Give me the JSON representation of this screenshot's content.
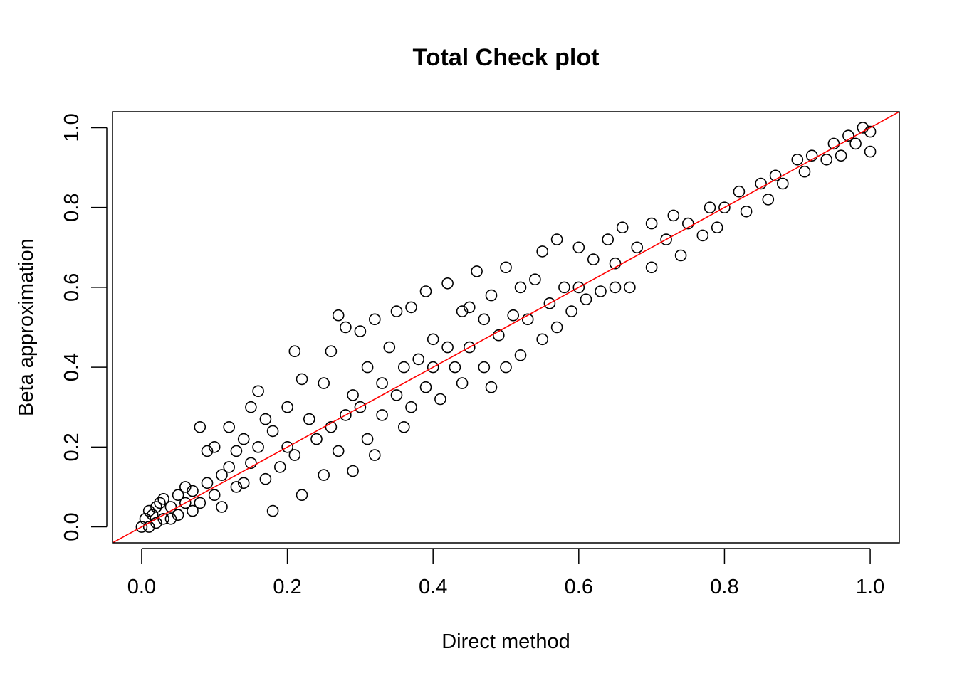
{
  "chart_data": {
    "type": "scatter",
    "title": "Total Check plot",
    "xlabel": "Direct method",
    "ylabel": "Beta approximation",
    "xlim": [
      -0.04,
      1.04
    ],
    "ylim": [
      -0.04,
      1.04
    ],
    "x_ticks": [
      0.0,
      0.2,
      0.4,
      0.6,
      0.8,
      1.0
    ],
    "y_ticks": [
      0.0,
      0.2,
      0.4,
      0.6,
      0.8,
      1.0
    ],
    "x_tick_labels": [
      "0.0",
      "0.2",
      "0.4",
      "0.6",
      "0.8",
      "1.0"
    ],
    "y_tick_labels": [
      "0.0",
      "0.2",
      "0.4",
      "0.6",
      "0.8",
      "1.0"
    ],
    "grid": false,
    "legend": "none",
    "marker": "open circle",
    "point_color": "#000000",
    "reference_line": {
      "type": "identity",
      "intercept": 0,
      "slope": 1,
      "color": "#ff0000"
    },
    "series": [
      {
        "points": [
          [
            0.0,
            0.0
          ],
          [
            0.005,
            0.02
          ],
          [
            0.01,
            0.04
          ],
          [
            0.01,
            0.0
          ],
          [
            0.015,
            0.03
          ],
          [
            0.02,
            0.05
          ],
          [
            0.02,
            0.01
          ],
          [
            0.025,
            0.06
          ],
          [
            0.03,
            0.02
          ],
          [
            0.03,
            0.07
          ],
          [
            0.04,
            0.05
          ],
          [
            0.04,
            0.02
          ],
          [
            0.05,
            0.08
          ],
          [
            0.05,
            0.03
          ],
          [
            0.06,
            0.06
          ],
          [
            0.06,
            0.1
          ],
          [
            0.07,
            0.04
          ],
          [
            0.07,
            0.09
          ],
          [
            0.08,
            0.25
          ],
          [
            0.08,
            0.06
          ],
          [
            0.09,
            0.19
          ],
          [
            0.09,
            0.11
          ],
          [
            0.1,
            0.08
          ],
          [
            0.1,
            0.2
          ],
          [
            0.11,
            0.13
          ],
          [
            0.11,
            0.05
          ],
          [
            0.12,
            0.25
          ],
          [
            0.12,
            0.15
          ],
          [
            0.13,
            0.1
          ],
          [
            0.13,
            0.19
          ],
          [
            0.14,
            0.22
          ],
          [
            0.14,
            0.11
          ],
          [
            0.15,
            0.3
          ],
          [
            0.15,
            0.16
          ],
          [
            0.16,
            0.34
          ],
          [
            0.16,
            0.2
          ],
          [
            0.17,
            0.12
          ],
          [
            0.17,
            0.27
          ],
          [
            0.18,
            0.04
          ],
          [
            0.18,
            0.24
          ],
          [
            0.19,
            0.15
          ],
          [
            0.2,
            0.3
          ],
          [
            0.2,
            0.2
          ],
          [
            0.21,
            0.44
          ],
          [
            0.21,
            0.18
          ],
          [
            0.22,
            0.37
          ],
          [
            0.22,
            0.08
          ],
          [
            0.23,
            0.27
          ],
          [
            0.24,
            0.22
          ],
          [
            0.25,
            0.36
          ],
          [
            0.25,
            0.13
          ],
          [
            0.26,
            0.44
          ],
          [
            0.26,
            0.25
          ],
          [
            0.27,
            0.53
          ],
          [
            0.27,
            0.19
          ],
          [
            0.28,
            0.5
          ],
          [
            0.28,
            0.28
          ],
          [
            0.29,
            0.14
          ],
          [
            0.29,
            0.33
          ],
          [
            0.3,
            0.49
          ],
          [
            0.3,
            0.3
          ],
          [
            0.31,
            0.22
          ],
          [
            0.31,
            0.4
          ],
          [
            0.32,
            0.52
          ],
          [
            0.32,
            0.18
          ],
          [
            0.33,
            0.36
          ],
          [
            0.33,
            0.28
          ],
          [
            0.34,
            0.45
          ],
          [
            0.35,
            0.54
          ],
          [
            0.35,
            0.33
          ],
          [
            0.36,
            0.25
          ],
          [
            0.36,
            0.4
          ],
          [
            0.37,
            0.55
          ],
          [
            0.37,
            0.3
          ],
          [
            0.38,
            0.42
          ],
          [
            0.39,
            0.59
          ],
          [
            0.39,
            0.35
          ],
          [
            0.4,
            0.4
          ],
          [
            0.4,
            0.47
          ],
          [
            0.41,
            0.32
          ],
          [
            0.42,
            0.61
          ],
          [
            0.42,
            0.45
          ],
          [
            0.43,
            0.4
          ],
          [
            0.44,
            0.54
          ],
          [
            0.44,
            0.36
          ],
          [
            0.45,
            0.55
          ],
          [
            0.45,
            0.45
          ],
          [
            0.46,
            0.64
          ],
          [
            0.47,
            0.4
          ],
          [
            0.47,
            0.52
          ],
          [
            0.48,
            0.35
          ],
          [
            0.48,
            0.58
          ],
          [
            0.49,
            0.48
          ],
          [
            0.5,
            0.65
          ],
          [
            0.5,
            0.4
          ],
          [
            0.51,
            0.53
          ],
          [
            0.52,
            0.43
          ],
          [
            0.52,
            0.6
          ],
          [
            0.53,
            0.52
          ],
          [
            0.54,
            0.62
          ],
          [
            0.55,
            0.47
          ],
          [
            0.55,
            0.69
          ],
          [
            0.56,
            0.56
          ],
          [
            0.57,
            0.72
          ],
          [
            0.57,
            0.5
          ],
          [
            0.58,
            0.6
          ],
          [
            0.59,
            0.54
          ],
          [
            0.6,
            0.7
          ],
          [
            0.6,
            0.6
          ],
          [
            0.61,
            0.57
          ],
          [
            0.62,
            0.67
          ],
          [
            0.63,
            0.59
          ],
          [
            0.64,
            0.72
          ],
          [
            0.65,
            0.6
          ],
          [
            0.65,
            0.66
          ],
          [
            0.66,
            0.75
          ],
          [
            0.67,
            0.6
          ],
          [
            0.68,
            0.7
          ],
          [
            0.7,
            0.76
          ],
          [
            0.7,
            0.65
          ],
          [
            0.72,
            0.72
          ],
          [
            0.73,
            0.78
          ],
          [
            0.74,
            0.68
          ],
          [
            0.75,
            0.76
          ],
          [
            0.77,
            0.73
          ],
          [
            0.78,
            0.8
          ],
          [
            0.79,
            0.75
          ],
          [
            0.8,
            0.8
          ],
          [
            0.82,
            0.84
          ],
          [
            0.83,
            0.79
          ],
          [
            0.85,
            0.86
          ],
          [
            0.86,
            0.82
          ],
          [
            0.87,
            0.88
          ],
          [
            0.88,
            0.86
          ],
          [
            0.9,
            0.92
          ],
          [
            0.91,
            0.89
          ],
          [
            0.92,
            0.93
          ],
          [
            0.94,
            0.92
          ],
          [
            0.95,
            0.96
          ],
          [
            0.96,
            0.93
          ],
          [
            0.97,
            0.98
          ],
          [
            0.98,
            0.96
          ],
          [
            0.99,
            1.0
          ],
          [
            1.0,
            0.99
          ],
          [
            1.0,
            0.94
          ]
        ]
      }
    ]
  }
}
